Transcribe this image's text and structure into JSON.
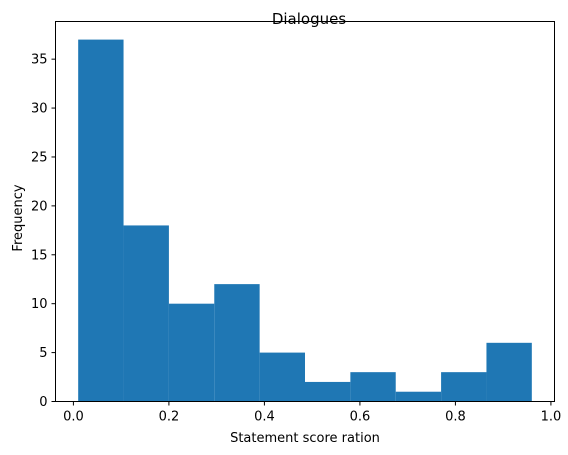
{
  "chart_data": {
    "type": "histogram",
    "title": "Dialogues",
    "xlabel": "Statement score ration",
    "ylabel": "Frequency",
    "bin_edges": [
      0.01,
      0.105,
      0.2,
      0.295,
      0.39,
      0.485,
      0.58,
      0.675,
      0.77,
      0.865,
      0.96
    ],
    "counts": [
      37,
      18,
      10,
      12,
      5,
      2,
      3,
      1,
      3,
      6
    ],
    "xlim": [
      -0.0375,
      1.0075
    ],
    "ylim": [
      0,
      38.85
    ],
    "xticks": [
      0.0,
      0.2,
      0.4,
      0.6,
      0.8,
      1.0
    ],
    "xtick_labels": [
      "0.0",
      "0.2",
      "0.4",
      "0.6",
      "0.8",
      "1.0"
    ],
    "yticks": [
      0,
      5,
      10,
      15,
      20,
      25,
      30,
      35
    ],
    "ytick_labels": [
      "0",
      "5",
      "10",
      "15",
      "20",
      "25",
      "30",
      "35"
    ],
    "bar_color": "#1f77b4",
    "grid": false,
    "legend": false
  }
}
